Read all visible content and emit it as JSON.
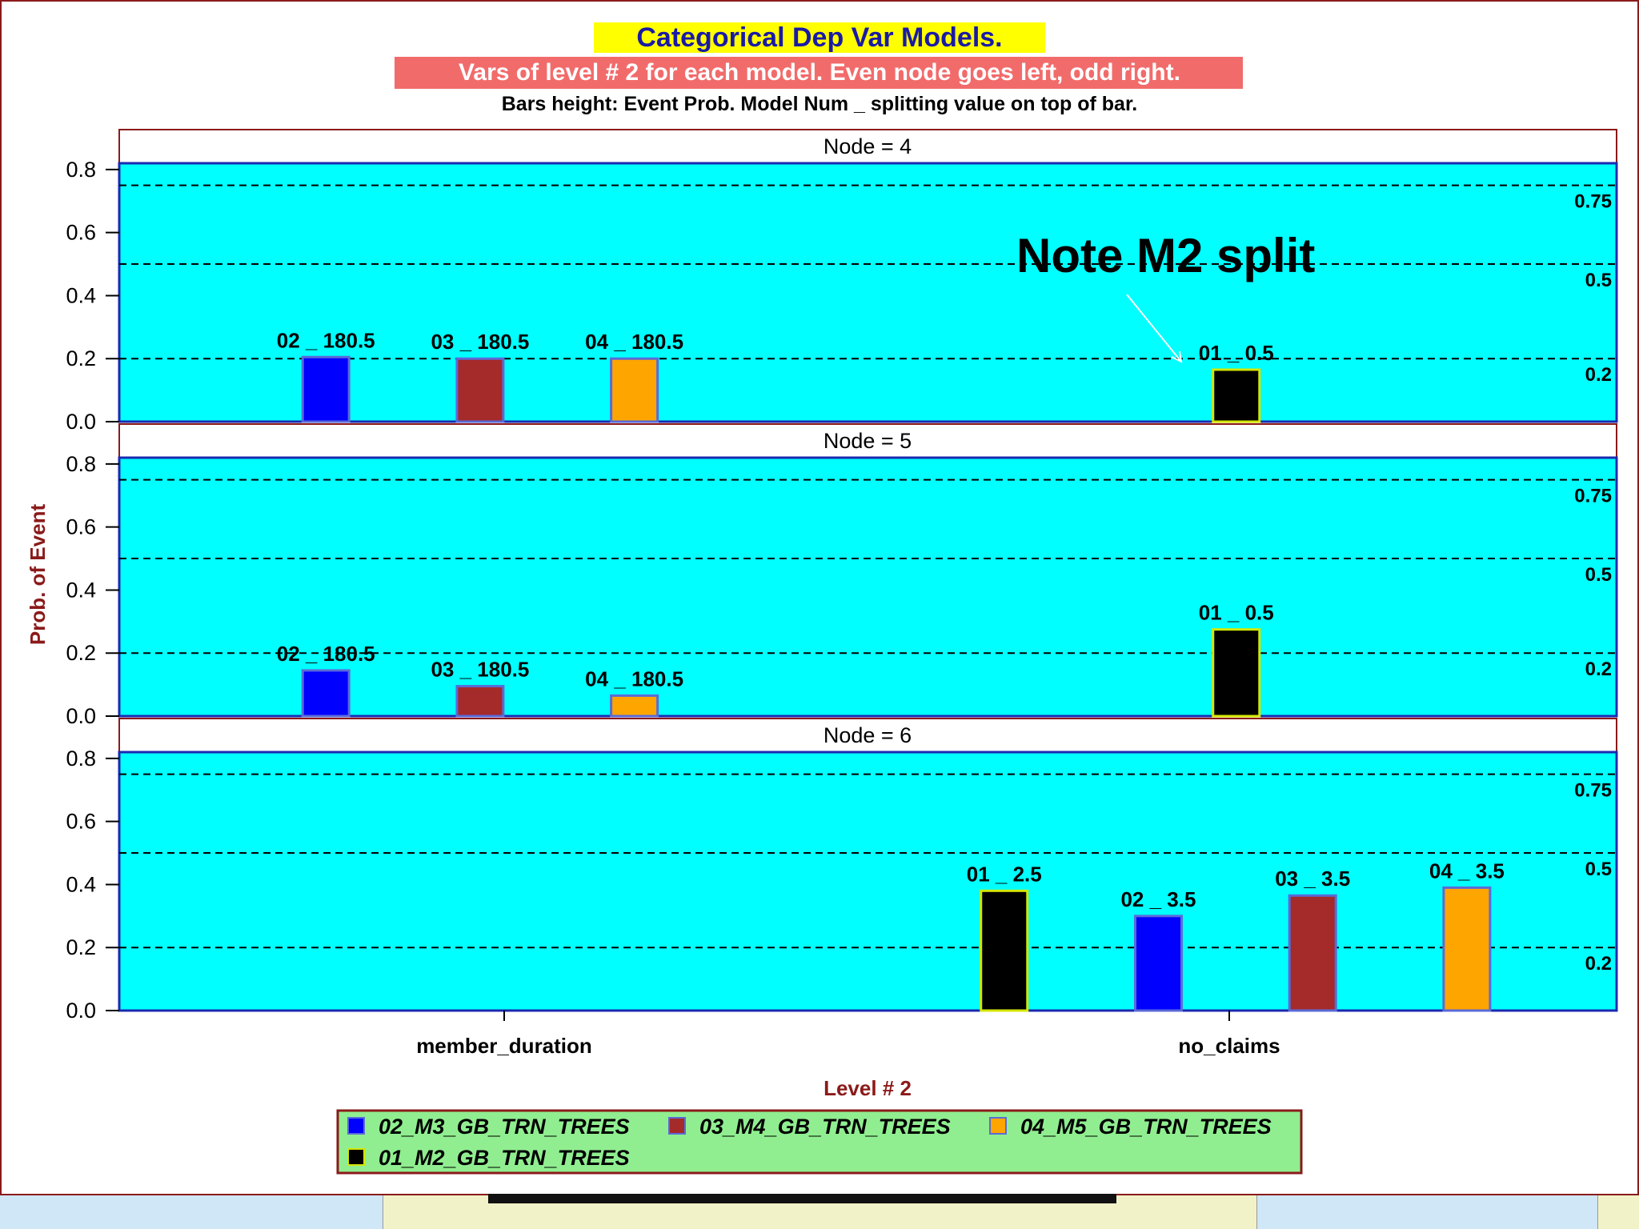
{
  "header": {
    "title": "Categorical Dep Var Models.",
    "subtitle": "Vars of level # 2 for each model. Even node goes left, odd right.",
    "caption": "Bars height: Event Prob. Model Num _ splitting value on top of bar."
  },
  "annotation": {
    "text": "Note M2 split"
  },
  "chart_data": {
    "type": "bar",
    "ylabel": "Prob. of Event",
    "xlabel": "Level # 2",
    "ylim": [
      0,
      0.82
    ],
    "yticks": [
      "0.0",
      "0.2",
      "0.4",
      "0.6",
      "0.8"
    ],
    "reference_lines": [
      {
        "value": 0.75,
        "label": "0.75"
      },
      {
        "value": 0.5,
        "label": "0.5"
      },
      {
        "value": 0.2,
        "label": "0.2"
      }
    ],
    "categories": [
      "member_duration",
      "no_claims"
    ],
    "series": [
      {
        "name": "02_M3_GB_TRN_TREES",
        "color": "#0000ff"
      },
      {
        "name": "03_M4_GB_TRN_TREES",
        "color": "#a52a2a"
      },
      {
        "name": "04_M5_GB_TRN_TREES",
        "color": "#ffa500"
      },
      {
        "name": "01_M2_GB_TRN_TREES",
        "color": "#000000"
      }
    ],
    "panels": [
      {
        "label": "Node = 4",
        "bars": [
          {
            "series": 0,
            "x": 0.138,
            "value": 0.205,
            "label": "02 _ 180.5"
          },
          {
            "series": 1,
            "x": 0.241,
            "value": 0.2,
            "label": "03 _ 180.5"
          },
          {
            "series": 2,
            "x": 0.344,
            "value": 0.2,
            "label": "04 _ 180.5"
          },
          {
            "series": 3,
            "x": 0.746,
            "value": 0.165,
            "label": "01 _ 0.5"
          }
        ]
      },
      {
        "label": "Node = 5",
        "bars": [
          {
            "series": 0,
            "x": 0.138,
            "value": 0.145,
            "label": "02 _ 180.5"
          },
          {
            "series": 1,
            "x": 0.241,
            "value": 0.095,
            "label": "03 _ 180.5"
          },
          {
            "series": 2,
            "x": 0.344,
            "value": 0.065,
            "label": "04 _ 180.5"
          },
          {
            "series": 3,
            "x": 0.746,
            "value": 0.275,
            "label": "01 _ 0.5"
          }
        ]
      },
      {
        "label": "Node = 6",
        "bars": [
          {
            "series": 3,
            "x": 0.591,
            "value": 0.38,
            "label": "01 _ 2.5"
          },
          {
            "series": 0,
            "x": 0.694,
            "value": 0.3,
            "label": "02 _ 3.5"
          },
          {
            "series": 1,
            "x": 0.797,
            "value": 0.365,
            "label": "03 _ 3.5"
          },
          {
            "series": 2,
            "x": 0.9,
            "value": 0.39,
            "label": "04 _ 3.5"
          }
        ]
      }
    ]
  }
}
